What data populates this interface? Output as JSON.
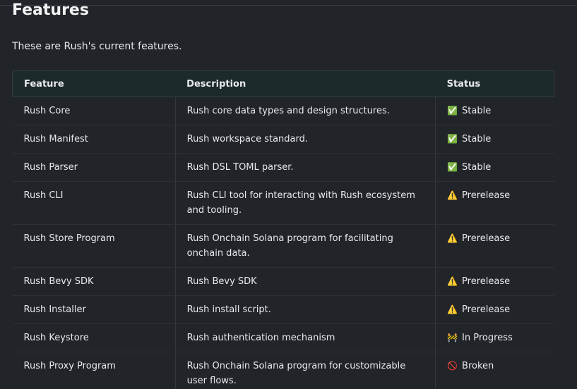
{
  "title": "Features",
  "intro": "These are Rush's current features.",
  "table": {
    "headers": [
      "Feature",
      "Description",
      "Status"
    ],
    "rows": [
      [
        "Rush Core",
        "Rush core data types and design structures.",
        {
          "icon": "✅",
          "text": "Stable"
        }
      ],
      [
        "Rush Manifest",
        "Rush workspace standard.",
        {
          "icon": "✅",
          "text": "Stable"
        }
      ],
      [
        "Rush Parser",
        "Rush DSL TOML parser.",
        {
          "icon": "✅",
          "text": "Stable"
        }
      ],
      [
        "Rush CLI",
        "Rush CLI tool for interacting with Rush ecosystem and tooling.",
        {
          "icon": "⚠️",
          "text": "Prerelease"
        }
      ],
      [
        "Rush Store Program",
        "Rush Onchain Solana program for facilitating onchain data.",
        {
          "icon": "⚠️",
          "text": "Prerelease"
        }
      ],
      [
        "Rush Bevy SDK",
        "Rush Bevy SDK",
        {
          "icon": "⚠️",
          "text": "Prerelease"
        }
      ],
      [
        "Rush Installer",
        "Rush install script.",
        {
          "icon": "⚠️",
          "text": "Prerelease"
        }
      ],
      [
        "Rush Keystore",
        "Rush authentication mechanism",
        {
          "icon": "🚧",
          "text": "In Progress"
        }
      ],
      [
        "Rush Proxy Program",
        "Rush Onchain Solana program for customizable user flows.",
        {
          "icon": "🚫",
          "text": "Broken"
        }
      ]
    ]
  }
}
